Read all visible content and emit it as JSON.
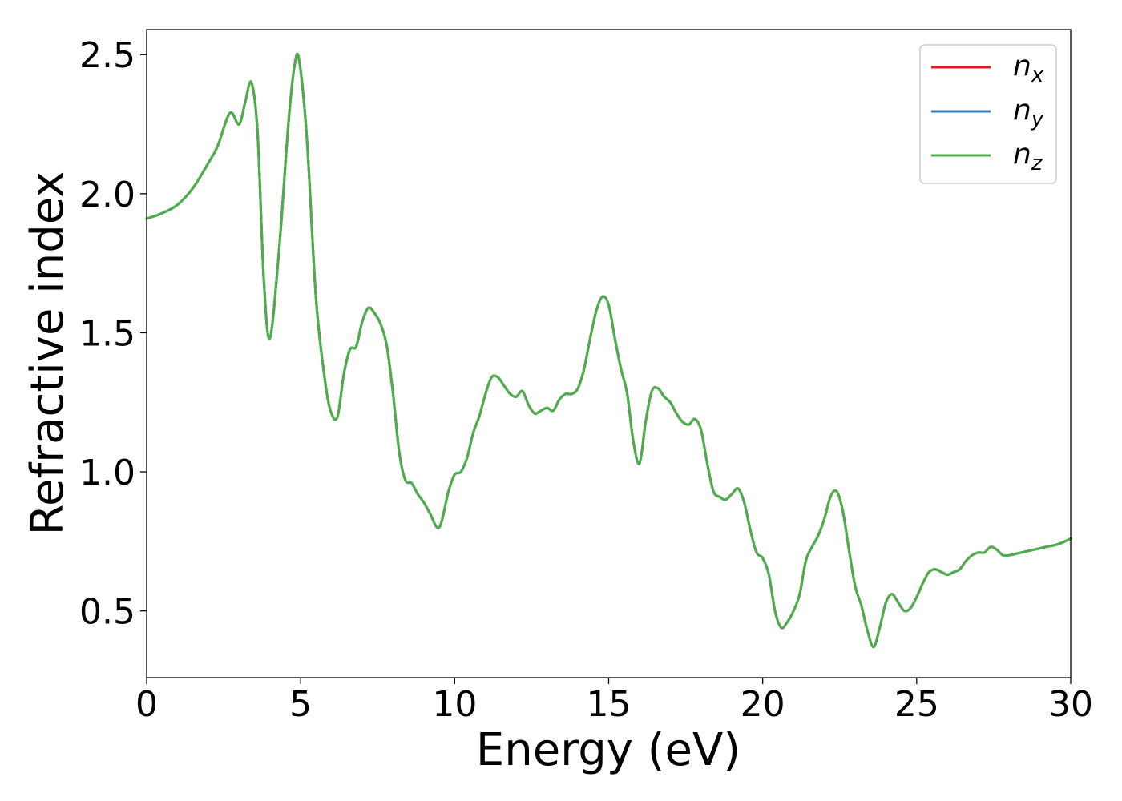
{
  "chart_data": {
    "type": "line",
    "xlabel": "Energy (eV)",
    "ylabel": "Refractive index",
    "xlim": [
      0,
      30
    ],
    "ylim": [
      0.26,
      2.59
    ],
    "xticks": [
      0,
      5,
      10,
      15,
      20,
      25,
      30
    ],
    "xtick_labels": [
      "0",
      "5",
      "10",
      "15",
      "20",
      "25",
      "30"
    ],
    "yticks": [
      0.5,
      1.0,
      1.5,
      2.0,
      2.5
    ],
    "ytick_labels": [
      "0.5",
      "1.0",
      "1.5",
      "2.0",
      "2.5"
    ],
    "grid": false,
    "legend_position": "top-right",
    "x": [
      0,
      0.5,
      1.0,
      1.5,
      2.0,
      2.3,
      2.7,
      3.0,
      3.2,
      3.4,
      3.6,
      3.8,
      4.0,
      4.3,
      4.6,
      4.8,
      4.95,
      5.2,
      5.5,
      5.8,
      6.0,
      6.2,
      6.4,
      6.6,
      6.8,
      7.0,
      7.2,
      7.4,
      7.6,
      7.8,
      8.0,
      8.2,
      8.4,
      8.6,
      8.8,
      9.0,
      9.2,
      9.5,
      9.8,
      10.0,
      10.2,
      10.4,
      10.6,
      10.8,
      11.0,
      11.2,
      11.4,
      11.6,
      11.8,
      12.0,
      12.2,
      12.4,
      12.6,
      12.8,
      13.0,
      13.2,
      13.4,
      13.6,
      13.8,
      14.0,
      14.2,
      14.4,
      14.6,
      14.8,
      15.0,
      15.2,
      15.4,
      15.6,
      15.8,
      16.0,
      16.2,
      16.4,
      16.6,
      16.8,
      17.0,
      17.2,
      17.4,
      17.6,
      17.8,
      18.0,
      18.2,
      18.4,
      18.6,
      18.8,
      19.0,
      19.2,
      19.4,
      19.6,
      19.8,
      20.0,
      20.2,
      20.4,
      20.6,
      20.8,
      21.0,
      21.2,
      21.4,
      21.6,
      21.8,
      22.0,
      22.2,
      22.4,
      22.6,
      22.8,
      23.0,
      23.2,
      23.4,
      23.6,
      23.8,
      24.0,
      24.2,
      24.4,
      24.6,
      24.8,
      25.0,
      25.2,
      25.4,
      25.6,
      25.8,
      26.0,
      26.2,
      26.4,
      26.6,
      26.8,
      27.0,
      27.2,
      27.4,
      27.6,
      27.8,
      28.0,
      28.4,
      28.8,
      29.2,
      29.6,
      30.0
    ],
    "series": [
      {
        "name": "n_x",
        "color": "#e41a1c",
        "values": [
          1.91,
          1.93,
          1.96,
          2.02,
          2.11,
          2.17,
          2.29,
          2.25,
          2.33,
          2.4,
          2.22,
          1.7,
          1.48,
          1.8,
          2.25,
          2.46,
          2.48,
          2.2,
          1.62,
          1.32,
          1.21,
          1.2,
          1.35,
          1.44,
          1.45,
          1.54,
          1.59,
          1.57,
          1.53,
          1.45,
          1.28,
          1.07,
          0.97,
          0.96,
          0.92,
          0.89,
          0.85,
          0.8,
          0.93,
          0.99,
          1.0,
          1.05,
          1.14,
          1.2,
          1.28,
          1.34,
          1.34,
          1.31,
          1.28,
          1.27,
          1.29,
          1.24,
          1.21,
          1.22,
          1.23,
          1.22,
          1.26,
          1.28,
          1.28,
          1.3,
          1.37,
          1.48,
          1.58,
          1.63,
          1.6,
          1.48,
          1.37,
          1.28,
          1.11,
          1.03,
          1.18,
          1.29,
          1.3,
          1.27,
          1.25,
          1.21,
          1.18,
          1.17,
          1.19,
          1.15,
          1.03,
          0.93,
          0.91,
          0.9,
          0.92,
          0.94,
          0.89,
          0.79,
          0.71,
          0.69,
          0.63,
          0.5,
          0.44,
          0.46,
          0.5,
          0.56,
          0.68,
          0.73,
          0.77,
          0.83,
          0.91,
          0.93,
          0.86,
          0.72,
          0.59,
          0.52,
          0.43,
          0.37,
          0.44,
          0.53,
          0.56,
          0.53,
          0.5,
          0.51,
          0.55,
          0.6,
          0.64,
          0.65,
          0.64,
          0.63,
          0.64,
          0.65,
          0.68,
          0.7,
          0.71,
          0.71,
          0.73,
          0.72,
          0.7,
          0.7,
          0.71,
          0.72,
          0.73,
          0.74,
          0.76
        ]
      },
      {
        "name": "n_y",
        "color": "#377eb8",
        "values": [
          1.91,
          1.93,
          1.96,
          2.02,
          2.11,
          2.17,
          2.29,
          2.25,
          2.33,
          2.4,
          2.22,
          1.7,
          1.48,
          1.8,
          2.25,
          2.46,
          2.48,
          2.2,
          1.62,
          1.32,
          1.21,
          1.2,
          1.35,
          1.44,
          1.45,
          1.54,
          1.59,
          1.57,
          1.53,
          1.45,
          1.28,
          1.07,
          0.97,
          0.96,
          0.92,
          0.89,
          0.85,
          0.8,
          0.93,
          0.99,
          1.0,
          1.05,
          1.14,
          1.2,
          1.28,
          1.34,
          1.34,
          1.31,
          1.28,
          1.27,
          1.29,
          1.24,
          1.21,
          1.22,
          1.23,
          1.22,
          1.26,
          1.28,
          1.28,
          1.3,
          1.37,
          1.48,
          1.58,
          1.63,
          1.6,
          1.48,
          1.37,
          1.28,
          1.11,
          1.03,
          1.18,
          1.29,
          1.3,
          1.27,
          1.25,
          1.21,
          1.18,
          1.17,
          1.19,
          1.15,
          1.03,
          0.93,
          0.91,
          0.9,
          0.92,
          0.94,
          0.89,
          0.79,
          0.71,
          0.69,
          0.63,
          0.5,
          0.44,
          0.46,
          0.5,
          0.56,
          0.68,
          0.73,
          0.77,
          0.83,
          0.91,
          0.93,
          0.86,
          0.72,
          0.59,
          0.52,
          0.43,
          0.37,
          0.44,
          0.53,
          0.56,
          0.53,
          0.5,
          0.51,
          0.55,
          0.6,
          0.64,
          0.65,
          0.64,
          0.63,
          0.64,
          0.65,
          0.68,
          0.7,
          0.71,
          0.71,
          0.73,
          0.72,
          0.7,
          0.7,
          0.71,
          0.72,
          0.73,
          0.74,
          0.76
        ]
      },
      {
        "name": "n_z",
        "color": "#4daf4a",
        "values": [
          1.91,
          1.93,
          1.96,
          2.02,
          2.11,
          2.17,
          2.29,
          2.25,
          2.33,
          2.4,
          2.22,
          1.7,
          1.48,
          1.8,
          2.25,
          2.46,
          2.48,
          2.2,
          1.62,
          1.32,
          1.21,
          1.2,
          1.35,
          1.44,
          1.45,
          1.54,
          1.59,
          1.57,
          1.53,
          1.45,
          1.28,
          1.07,
          0.97,
          0.96,
          0.92,
          0.89,
          0.85,
          0.8,
          0.93,
          0.99,
          1.0,
          1.05,
          1.14,
          1.2,
          1.28,
          1.34,
          1.34,
          1.31,
          1.28,
          1.27,
          1.29,
          1.24,
          1.21,
          1.22,
          1.23,
          1.22,
          1.26,
          1.28,
          1.28,
          1.3,
          1.37,
          1.48,
          1.58,
          1.63,
          1.6,
          1.48,
          1.37,
          1.28,
          1.11,
          1.03,
          1.18,
          1.29,
          1.3,
          1.27,
          1.25,
          1.21,
          1.18,
          1.17,
          1.19,
          1.15,
          1.03,
          0.93,
          0.91,
          0.9,
          0.92,
          0.94,
          0.89,
          0.79,
          0.71,
          0.69,
          0.63,
          0.5,
          0.44,
          0.46,
          0.5,
          0.56,
          0.68,
          0.73,
          0.77,
          0.83,
          0.91,
          0.93,
          0.86,
          0.72,
          0.59,
          0.52,
          0.43,
          0.37,
          0.44,
          0.53,
          0.56,
          0.53,
          0.5,
          0.51,
          0.55,
          0.6,
          0.64,
          0.65,
          0.64,
          0.63,
          0.64,
          0.65,
          0.68,
          0.7,
          0.71,
          0.71,
          0.73,
          0.72,
          0.7,
          0.7,
          0.71,
          0.72,
          0.73,
          0.74,
          0.76
        ]
      }
    ],
    "legend": [
      {
        "base": "n",
        "sub": "x",
        "color": "#e41a1c"
      },
      {
        "base": "n",
        "sub": "y",
        "color": "#377eb8"
      },
      {
        "base": "n",
        "sub": "z",
        "color": "#4daf4a"
      }
    ]
  }
}
